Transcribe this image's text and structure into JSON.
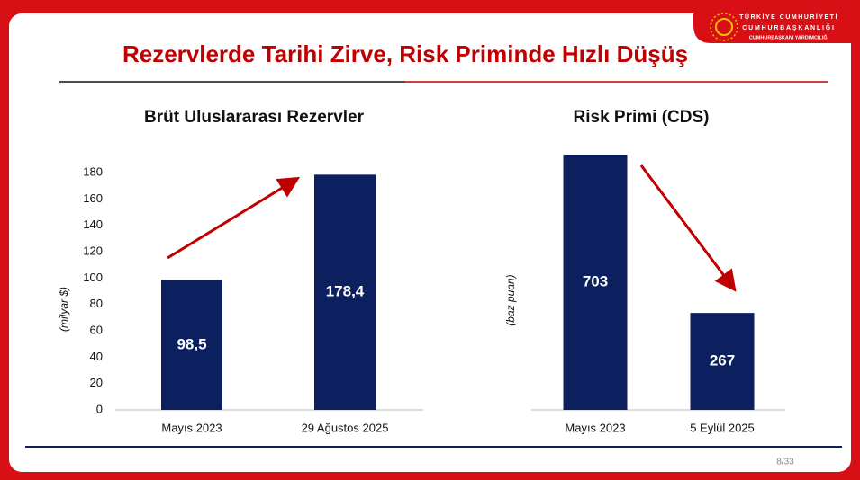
{
  "slide_title": "Rezervlerde Tarihi Zirve, Risk Priminde Hızlı Düşüş",
  "logo": {
    "line1": "TÜRKİYE CUMHURİYETİ",
    "line2": "CUMHURBAŞKANLIĞI",
    "line3": "CUMHURBAŞKANI YARDIMCILIĞI"
  },
  "page_number": "8/33",
  "chart_data": [
    {
      "type": "bar",
      "title": "Brüt Uluslararası Rezervler",
      "y_label": "(milyar $)",
      "categories": [
        "Mayıs 2023",
        "29 Ağustos 2025"
      ],
      "values": [
        98.5,
        178.4
      ],
      "value_labels": [
        "98,5",
        "178,4"
      ],
      "color": "#0c1f5e",
      "ylim": [
        0,
        180
      ],
      "yticks": [
        0,
        20,
        40,
        60,
        80,
        100,
        120,
        140,
        160,
        180
      ]
    },
    {
      "type": "bar",
      "title": "Risk Primi (CDS)",
      "y_label": "(baz puan)",
      "categories": [
        "Mayıs 2023",
        "5 Eylül 2025"
      ],
      "values": [
        703,
        267
      ],
      "value_labels": [
        "703",
        "267"
      ],
      "color": "#0c1f5e"
    }
  ]
}
